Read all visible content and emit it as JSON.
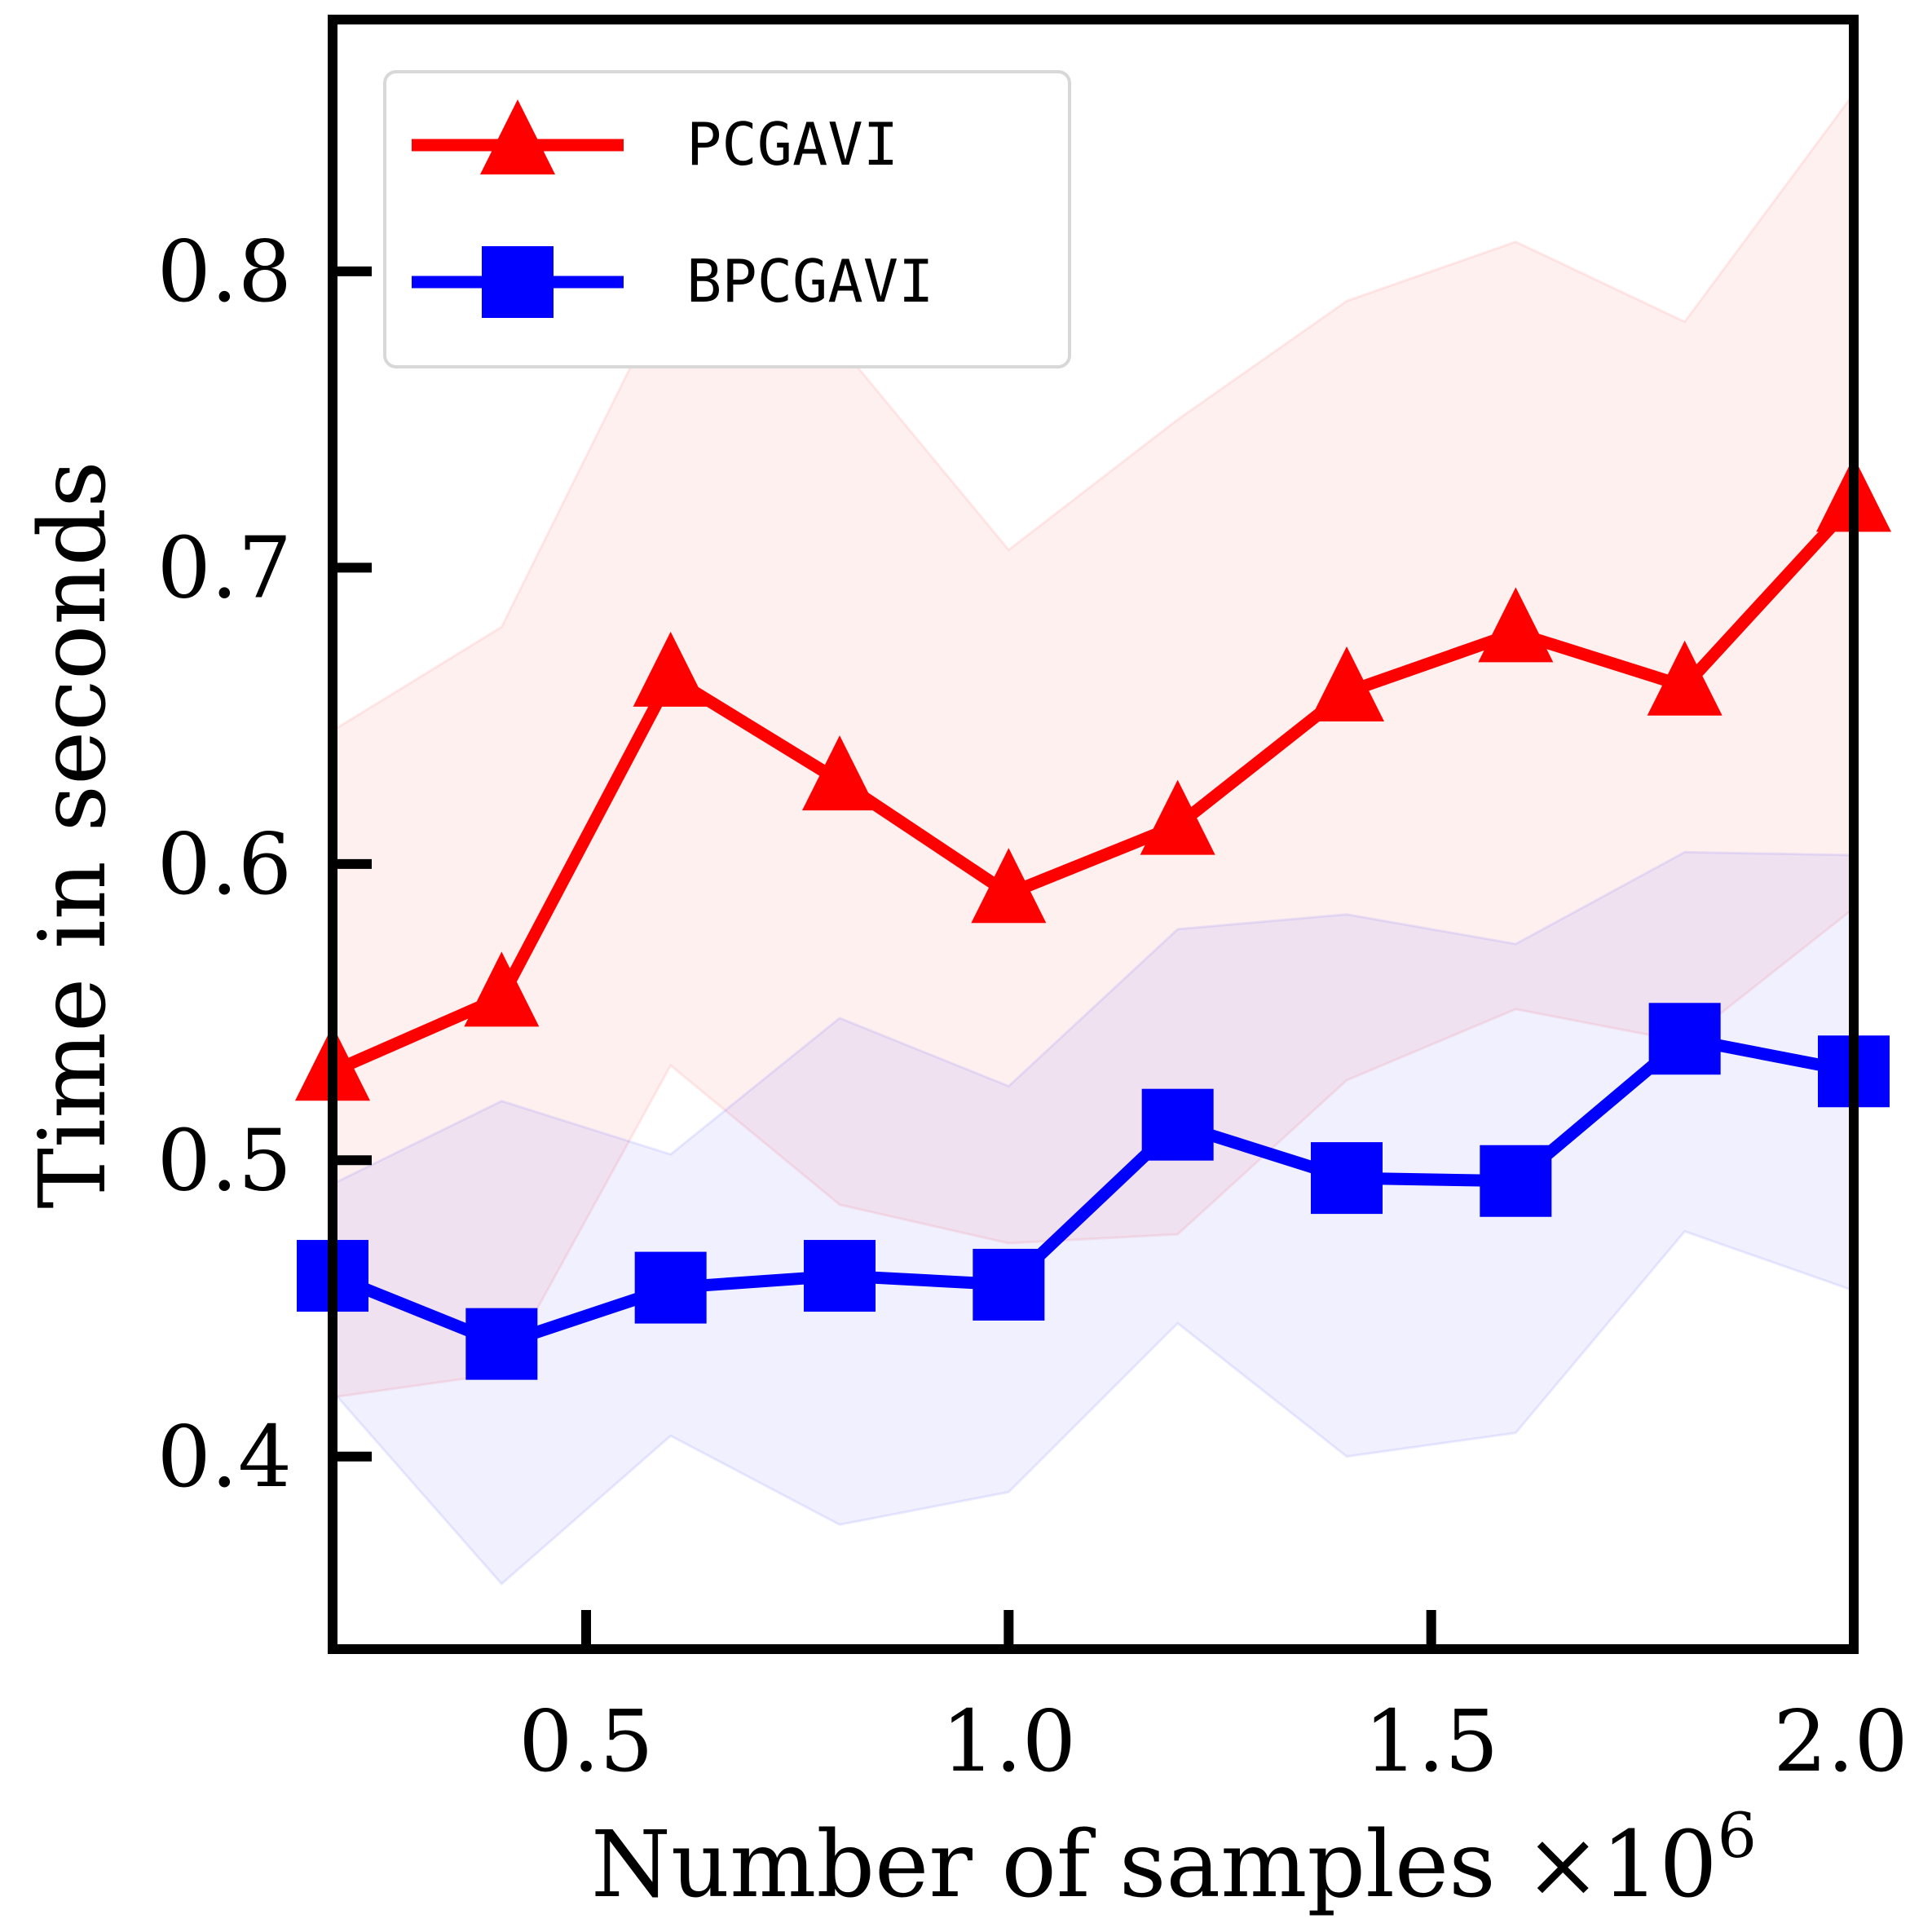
{
  "chart_data": {
    "type": "line",
    "xlabel": "Number of samples",
    "x_multiplier": "×10",
    "x_multiplier_exp": "6",
    "ylabel": "Time in seconds",
    "xlim": [
      0.2,
      2.0
    ],
    "ylim": [
      0.335,
      0.885
    ],
    "x_ticks": [
      0.5,
      1.0,
      1.5,
      2.0
    ],
    "x_tick_labels": [
      "0.5",
      "1.0",
      "1.5",
      "2.0"
    ],
    "y_ticks": [
      0.4,
      0.5,
      0.6,
      0.7,
      0.8
    ],
    "y_tick_labels": [
      "0.4",
      "0.5",
      "0.6",
      "0.7",
      "0.8"
    ],
    "grid": false,
    "legend_position": "top-left",
    "x": [
      0.2,
      0.4,
      0.6,
      0.8,
      1.0,
      1.2,
      1.4,
      1.6,
      1.8,
      2.0
    ],
    "series": [
      {
        "name": "PCGAVI",
        "color": "#ff0000",
        "marker": "triangle",
        "values": [
          0.53,
          0.555,
          0.663,
          0.628,
          0.59,
          0.613,
          0.658,
          0.678,
          0.66,
          0.722
        ],
        "band_upper": [
          0.645,
          0.68,
          0.795,
          0.775,
          0.706,
          0.75,
          0.79,
          0.81,
          0.783,
          0.86
        ],
        "band_lower": [
          0.42,
          0.428,
          0.532,
          0.485,
          0.472,
          0.475,
          0.527,
          0.551,
          0.54,
          0.585
        ]
      },
      {
        "name": "BPCGAVI",
        "color": "#0000ff",
        "marker": "square",
        "values": [
          0.461,
          0.438,
          0.457,
          0.461,
          0.458,
          0.512,
          0.494,
          0.493,
          0.541,
          0.53
        ],
        "band_upper": [
          0.492,
          0.52,
          0.502,
          0.548,
          0.525,
          0.578,
          0.583,
          0.573,
          0.604,
          0.603
        ],
        "band_lower": [
          0.422,
          0.357,
          0.407,
          0.377,
          0.388,
          0.445,
          0.4,
          0.408,
          0.476,
          0.456
        ]
      }
    ]
  }
}
